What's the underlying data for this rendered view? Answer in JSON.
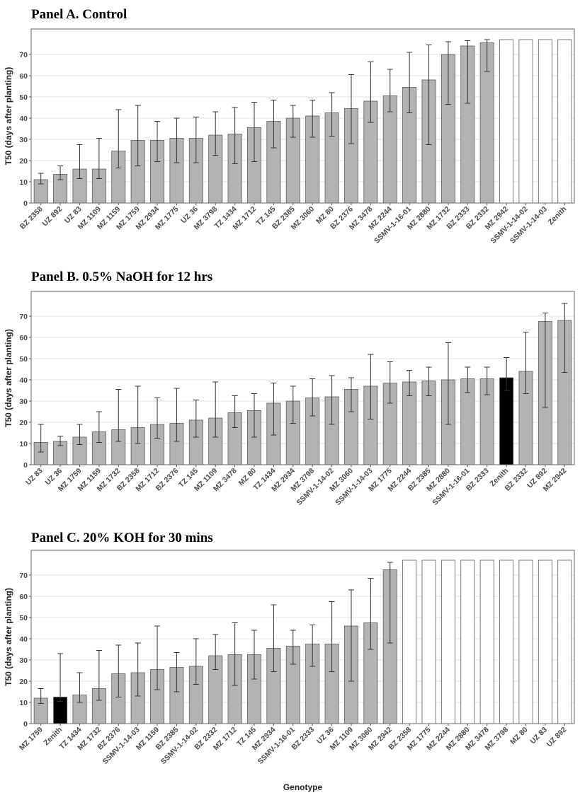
{
  "xlabel": "Genotype",
  "colors": {
    "bar_default": "#b3b3b3",
    "bar_highlight": "#000000",
    "bar_open": "#ffffff",
    "bar_stroke": "#5a5a5a",
    "grid": "#e3e3e3",
    "frame": "#666666"
  },
  "chart_data": [
    {
      "type": "bar",
      "title": "Panel A. Control",
      "ylabel": "T50 (days after planting)",
      "ylim": [
        0,
        80
      ],
      "yticks": [
        0,
        10,
        20,
        30,
        40,
        50,
        60,
        70
      ],
      "grid": true,
      "categories": [
        "BZ 2358",
        "UZ 892",
        "UZ 83",
        "MZ 1109",
        "MZ 1159",
        "MZ 1759",
        "MZ 2934",
        "MZ 1775",
        "UZ 36",
        "MZ 3798",
        "TZ 1434",
        "MZ 1712",
        "TZ 145",
        "BZ 2385",
        "MZ 3060",
        "MZ 80",
        "BZ 2376",
        "MZ 3478",
        "MZ 2244",
        "SSMV-1-16-01",
        "MZ 2880",
        "MZ 1732",
        "BZ 2333",
        "BZ 2332",
        "MZ 2942",
        "SSMV-1-14-02",
        "SSMV-1-14-03",
        "Zenith"
      ],
      "values": [
        11,
        13.5,
        16,
        16,
        24.5,
        29.5,
        29.5,
        30.5,
        30.5,
        32,
        32.5,
        35.5,
        38.5,
        40,
        41,
        42.5,
        44.5,
        48,
        50.5,
        54.5,
        58,
        70,
        74,
        75.5,
        77,
        77,
        77,
        77
      ],
      "error_low": [
        9,
        11,
        11.5,
        11.5,
        16.5,
        17.5,
        19.5,
        19,
        19,
        22.5,
        18.5,
        19.5,
        26,
        31,
        31,
        31.5,
        28,
        38,
        43,
        42.5,
        27.5,
        46.5,
        47,
        62,
        null,
        null,
        null,
        null
      ],
      "error_high": [
        14,
        17.5,
        27.5,
        30.5,
        44,
        46,
        38.5,
        40,
        40.5,
        43,
        45,
        47.5,
        48.5,
        46,
        48.5,
        52,
        60.5,
        66.5,
        63,
        71,
        74.5,
        76,
        76.5,
        77,
        null,
        null,
        null,
        null
      ],
      "fill": [
        "gray",
        "gray",
        "gray",
        "gray",
        "gray",
        "gray",
        "gray",
        "gray",
        "gray",
        "gray",
        "gray",
        "gray",
        "gray",
        "gray",
        "gray",
        "gray",
        "gray",
        "gray",
        "gray",
        "gray",
        "gray",
        "gray",
        "gray",
        "gray",
        "open",
        "open",
        "open",
        "open"
      ]
    },
    {
      "type": "bar",
      "title": "Panel B. 0.5% NaOH for 12 hrs",
      "ylabel": "T50 (days after planting)",
      "ylim": [
        0,
        80
      ],
      "yticks": [
        0,
        10,
        20,
        30,
        40,
        50,
        60,
        70
      ],
      "grid": true,
      "categories": [
        "UZ 83",
        "UZ 36",
        "MZ 1759",
        "MZ 1159",
        "MZ 1732",
        "BZ 2358",
        "MZ 1712",
        "BZ 2376",
        "TZ 145",
        "MZ 1109",
        "MZ 3478",
        "MZ 80",
        "TZ 1434",
        "MZ 2934",
        "MZ 3798",
        "SSMV-1-14-02",
        "MZ 3060",
        "SSMV-1-14-03",
        "MZ 1775",
        "MZ 2244",
        "BZ 2385",
        "MZ 2880",
        "SSMV-1-16-01",
        "BZ 2333",
        "Zenith",
        "BZ 2332",
        "UZ 892",
        "MZ 2942"
      ],
      "values": [
        10.5,
        11,
        13,
        15.5,
        16.5,
        17.5,
        19,
        19.5,
        21,
        22,
        24.5,
        25.5,
        29,
        30,
        31.5,
        32,
        35.5,
        37,
        38.5,
        39,
        39.5,
        40,
        40.5,
        40.5,
        41,
        44,
        67.5,
        68
      ],
      "error_low": [
        6,
        9,
        9.5,
        10.5,
        11,
        10,
        12.5,
        11,
        13,
        13,
        17.5,
        13,
        14,
        19.5,
        23,
        19,
        25,
        21.5,
        29,
        32.5,
        32.5,
        19,
        34,
        33,
        35,
        33.5,
        27,
        43.5
      ],
      "error_high": [
        19,
        13.5,
        19,
        25,
        35.5,
        37,
        31.5,
        36,
        30.5,
        39,
        32.5,
        33.5,
        38.5,
        37,
        40.5,
        42,
        41,
        52,
        48.5,
        44.5,
        46,
        57.5,
        46,
        46,
        50.5,
        62.5,
        71.5,
        76
      ],
      "fill": [
        "gray",
        "gray",
        "gray",
        "gray",
        "gray",
        "gray",
        "gray",
        "gray",
        "gray",
        "gray",
        "gray",
        "gray",
        "gray",
        "gray",
        "gray",
        "gray",
        "gray",
        "gray",
        "gray",
        "gray",
        "gray",
        "gray",
        "gray",
        "gray",
        "black",
        "gray",
        "gray",
        "gray"
      ]
    },
    {
      "type": "bar",
      "title": "Panel C. 20% KOH for 30 mins",
      "ylabel": "T50 (days after planting)",
      "xlabel": "Genotype",
      "ylim": [
        0,
        80
      ],
      "yticks": [
        0,
        10,
        20,
        30,
        40,
        50,
        60,
        70
      ],
      "grid": true,
      "categories": [
        "MZ 1759",
        "Zenith",
        "TZ 1434",
        "MZ 1732",
        "BZ 2376",
        "SSMV-1-14-03",
        "MZ 1159",
        "BZ 2385",
        "SSMV-1-14-02",
        "BZ 2332",
        "MZ 1712",
        "TZ 145",
        "MZ 2934",
        "SSMV-1-16-01",
        "BZ 2333",
        "UZ 36",
        "MZ 1109",
        "MZ 3060",
        "MZ 2942",
        "BZ 2358",
        "MZ 1775",
        "MZ 2244",
        "MZ 2880",
        "MZ 3478",
        "MZ 3798",
        "MZ 80",
        "UZ 83",
        "UZ 892"
      ],
      "values": [
        12,
        12.5,
        13.5,
        16.5,
        23.5,
        24,
        25.5,
        26.5,
        27,
        32,
        32.5,
        32.5,
        35.5,
        36.5,
        37.5,
        37.5,
        46,
        47.5,
        72.5,
        77,
        77,
        77,
        77,
        77,
        77,
        77,
        77,
        77
      ],
      "error_low": [
        9.5,
        10.5,
        10,
        11,
        12.5,
        13,
        16,
        15,
        18.5,
        25.5,
        18,
        21,
        24.5,
        28,
        27,
        24.5,
        20,
        35,
        38,
        null,
        null,
        null,
        null,
        null,
        null,
        null,
        null,
        null
      ],
      "error_high": [
        16.5,
        33,
        24,
        34.5,
        37,
        38,
        46,
        33.5,
        40,
        42,
        47.5,
        44,
        56,
        44,
        46.5,
        57.5,
        63,
        68.5,
        76,
        null,
        null,
        null,
        null,
        null,
        null,
        null,
        null,
        null
      ],
      "fill": [
        "gray",
        "black",
        "gray",
        "gray",
        "gray",
        "gray",
        "gray",
        "gray",
        "gray",
        "gray",
        "gray",
        "gray",
        "gray",
        "gray",
        "gray",
        "gray",
        "gray",
        "gray",
        "gray",
        "open",
        "open",
        "open",
        "open",
        "open",
        "open",
        "open",
        "open",
        "open"
      ]
    }
  ]
}
